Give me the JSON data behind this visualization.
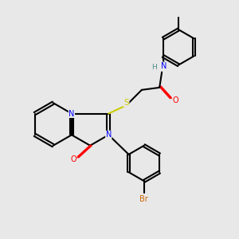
{
  "background_color": "#e8e8e8",
  "bond_color": "#000000",
  "atom_colors": {
    "N": "#0000ff",
    "O": "#ff0000",
    "S": "#cccc00",
    "Br": "#cc6600",
    "H": "#4a8a8a",
    "C": "#000000"
  },
  "title": "",
  "figsize": [
    3.0,
    3.0
  ],
  "dpi": 100
}
